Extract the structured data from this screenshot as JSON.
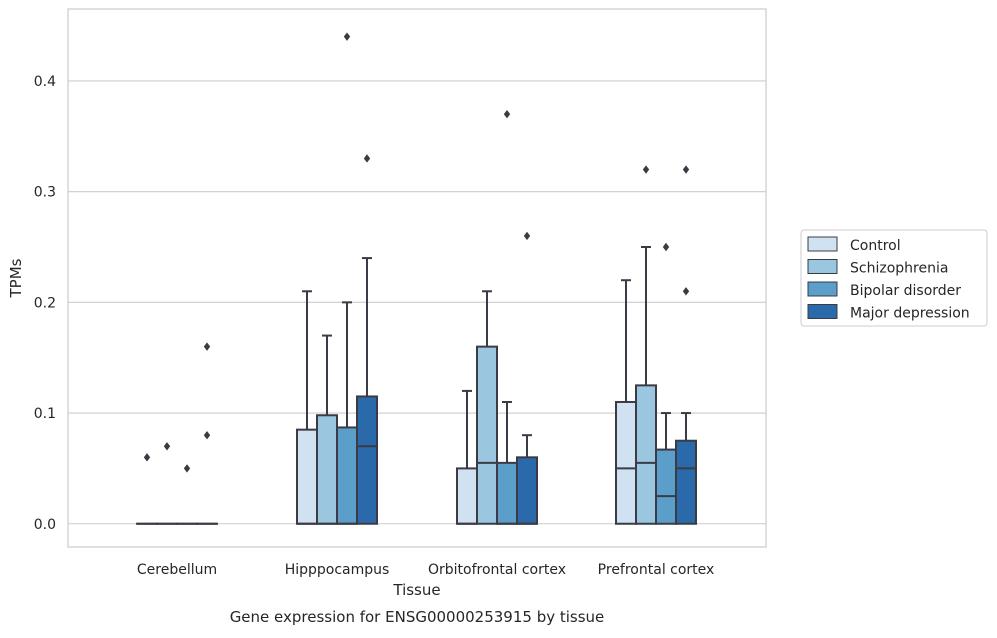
{
  "caption": "Gene expression for ENSG00000253915 by tissue",
  "colors": {
    "Control": "#d0e1f1",
    "Schizophrenia": "#9ac6df",
    "Bipolar disorder": "#5b9ec9",
    "Major depression": "#2a6aaa",
    "box_edge": "#3b3b45",
    "outlier": "#3b3b45",
    "grid": "#cccccc",
    "frame": "#cccccc"
  },
  "chart_data": {
    "type": "box",
    "title": "",
    "xlabel": "Tissue",
    "ylabel": "TPMs",
    "ylim": [
      -0.021,
      0.465
    ],
    "yticks": [
      0.0,
      0.1,
      0.2,
      0.3,
      0.4
    ],
    "ytick_labels": [
      "0.0",
      "0.1",
      "0.2",
      "0.3",
      "0.4"
    ],
    "grid": "horizontal",
    "legend_position": "right-outside",
    "categories": [
      "Cerebellum",
      "Hipppocampus",
      "Orbitofrontal cortex",
      "Prefrontal cortex"
    ],
    "series": [
      {
        "name": "Control",
        "boxes": [
          {
            "min": 0.0,
            "q1": 0.0,
            "median": 0.0,
            "q3": 0.0,
            "max": 0.0,
            "outliers": [
              0.06
            ]
          },
          {
            "min": 0.0,
            "q1": 0.0,
            "median": 0.0,
            "q3": 0.085,
            "max": 0.21,
            "outliers": []
          },
          {
            "min": 0.0,
            "q1": 0.0,
            "median": 0.0,
            "q3": 0.05,
            "max": 0.12,
            "outliers": []
          },
          {
            "min": 0.0,
            "q1": 0.0,
            "median": 0.05,
            "q3": 0.11,
            "max": 0.22,
            "outliers": []
          }
        ]
      },
      {
        "name": "Schizophrenia",
        "boxes": [
          {
            "min": 0.0,
            "q1": 0.0,
            "median": 0.0,
            "q3": 0.0,
            "max": 0.0,
            "outliers": [
              0.07
            ]
          },
          {
            "min": 0.0,
            "q1": 0.0,
            "median": 0.0,
            "q3": 0.098,
            "max": 0.17,
            "outliers": []
          },
          {
            "min": 0.0,
            "q1": 0.0,
            "median": 0.055,
            "q3": 0.16,
            "max": 0.21,
            "outliers": []
          },
          {
            "min": 0.0,
            "q1": 0.0,
            "median": 0.055,
            "q3": 0.125,
            "max": 0.25,
            "outliers": [
              0.32
            ]
          }
        ]
      },
      {
        "name": "Bipolar disorder",
        "boxes": [
          {
            "min": 0.0,
            "q1": 0.0,
            "median": 0.0,
            "q3": 0.0,
            "max": 0.0,
            "outliers": [
              0.05
            ]
          },
          {
            "min": 0.0,
            "q1": 0.0,
            "median": 0.0,
            "q3": 0.087,
            "max": 0.2,
            "outliers": [
              0.44
            ]
          },
          {
            "min": 0.0,
            "q1": 0.0,
            "median": 0.0,
            "q3": 0.055,
            "max": 0.11,
            "outliers": [
              0.37
            ]
          },
          {
            "min": 0.0,
            "q1": 0.0,
            "median": 0.025,
            "q3": 0.067,
            "max": 0.1,
            "outliers": [
              0.25
            ]
          }
        ]
      },
      {
        "name": "Major depression",
        "boxes": [
          {
            "min": 0.0,
            "q1": 0.0,
            "median": 0.0,
            "q3": 0.0,
            "max": 0.0,
            "outliers": [
              0.08,
              0.16
            ]
          },
          {
            "min": 0.0,
            "q1": 0.0,
            "median": 0.07,
            "q3": 0.115,
            "max": 0.24,
            "outliers": [
              0.33
            ]
          },
          {
            "min": 0.0,
            "q1": 0.0,
            "median": 0.0,
            "q3": 0.06,
            "max": 0.08,
            "outliers": [
              0.26
            ]
          },
          {
            "min": 0.0,
            "q1": 0.0,
            "median": 0.05,
            "q3": 0.075,
            "max": 0.1,
            "outliers": [
              0.21,
              0.32
            ]
          }
        ]
      }
    ]
  }
}
